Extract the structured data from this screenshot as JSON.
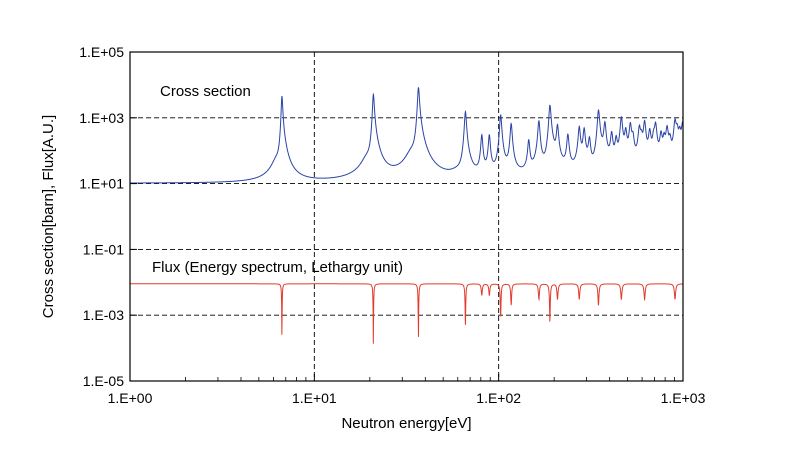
{
  "chart_data": {
    "type": "line",
    "title": "",
    "xlabel": "Neutron energy[eV]",
    "ylabel": "Cross section[barn], Flux[A.U.]",
    "x_scale": "log",
    "y_scale": "log",
    "xlim": [
      1,
      1000
    ],
    "ylim": [
      1e-05,
      100000
    ],
    "x_ticks": [
      "1.E+00",
      "1.E+01",
      "1.E+02",
      "1.E+03"
    ],
    "y_ticks": [
      "1.E+05",
      "1.E+03",
      "1.E+01",
      "1.E-01",
      "1.E-03",
      "1.E-05"
    ],
    "grid": "dashed at major ticks",
    "legend": "none",
    "annotations": [
      {
        "text": "Cross section",
        "series": "cross_section"
      },
      {
        "text": "Flux (Energy spectrum, Lethargy unit)",
        "series": "flux"
      }
    ],
    "series": [
      {
        "key": "cross_section",
        "color": "#2b44a6",
        "baseline": 10,
        "resonances": [
          {
            "x": 6.67,
            "peak": 7000
          },
          {
            "x": 20.9,
            "peak": 8000
          },
          {
            "x": 36.7,
            "peak": 13000
          },
          {
            "x": 66.0,
            "peak": 2000
          },
          {
            "x": 81.0,
            "peak": 300
          },
          {
            "x": 89.0,
            "peak": 300
          },
          {
            "x": 102.5,
            "peak": 1500
          },
          {
            "x": 116.9,
            "peak": 700
          },
          {
            "x": 145.6,
            "peak": 200
          },
          {
            "x": 165.3,
            "peak": 1000
          },
          {
            "x": 189.6,
            "peak": 4000
          },
          {
            "x": 208.5,
            "peak": 600
          },
          {
            "x": 237.4,
            "peak": 300
          },
          {
            "x": 273.7,
            "peak": 600
          },
          {
            "x": 291.0,
            "peak": 500
          },
          {
            "x": 311.0,
            "peak": 300
          },
          {
            "x": 347.8,
            "peak": 3000
          },
          {
            "x": 376.9,
            "peak": 800
          },
          {
            "x": 410.3,
            "peak": 400
          },
          {
            "x": 434.0,
            "peak": 300
          },
          {
            "x": 463.0,
            "peak": 1500
          },
          {
            "x": 489.0,
            "peak": 500
          },
          {
            "x": 518.0,
            "peak": 800
          },
          {
            "x": 535.0,
            "peak": 300
          },
          {
            "x": 580.0,
            "peak": 700
          },
          {
            "x": 595.0,
            "peak": 300
          },
          {
            "x": 619.0,
            "peak": 1000
          },
          {
            "x": 660.0,
            "peak": 500
          },
          {
            "x": 693.0,
            "peak": 300
          },
          {
            "x": 710.0,
            "peak": 800
          },
          {
            "x": 760.0,
            "peak": 400
          },
          {
            "x": 790.0,
            "peak": 300
          },
          {
            "x": 820.0,
            "peak": 700
          },
          {
            "x": 850.0,
            "peak": 300
          },
          {
            "x": 905.0,
            "peak": 1200
          },
          {
            "x": 930.0,
            "peak": 500
          },
          {
            "x": 960.0,
            "peak": 400
          },
          {
            "x": 995.0,
            "peak": 700
          }
        ]
      },
      {
        "key": "flux",
        "color": "#e23b2c",
        "baseline": 0.009,
        "dips": [
          {
            "x": 6.67,
            "min": 0.00012
          },
          {
            "x": 20.9,
            "min": 0.00012
          },
          {
            "x": 36.7,
            "min": 0.00015
          },
          {
            "x": 66.0,
            "min": 0.0004
          },
          {
            "x": 81.0,
            "min": 0.004
          },
          {
            "x": 89.0,
            "min": 0.004
          },
          {
            "x": 102.5,
            "min": 0.0008
          },
          {
            "x": 116.9,
            "min": 0.002
          },
          {
            "x": 165.3,
            "min": 0.003
          },
          {
            "x": 189.6,
            "min": 0.0006
          },
          {
            "x": 208.5,
            "min": 0.003
          },
          {
            "x": 273.7,
            "min": 0.003
          },
          {
            "x": 347.8,
            "min": 0.002
          },
          {
            "x": 463.0,
            "min": 0.003
          },
          {
            "x": 619.0,
            "min": 0.003
          },
          {
            "x": 905.0,
            "min": 0.003
          }
        ]
      }
    ]
  }
}
